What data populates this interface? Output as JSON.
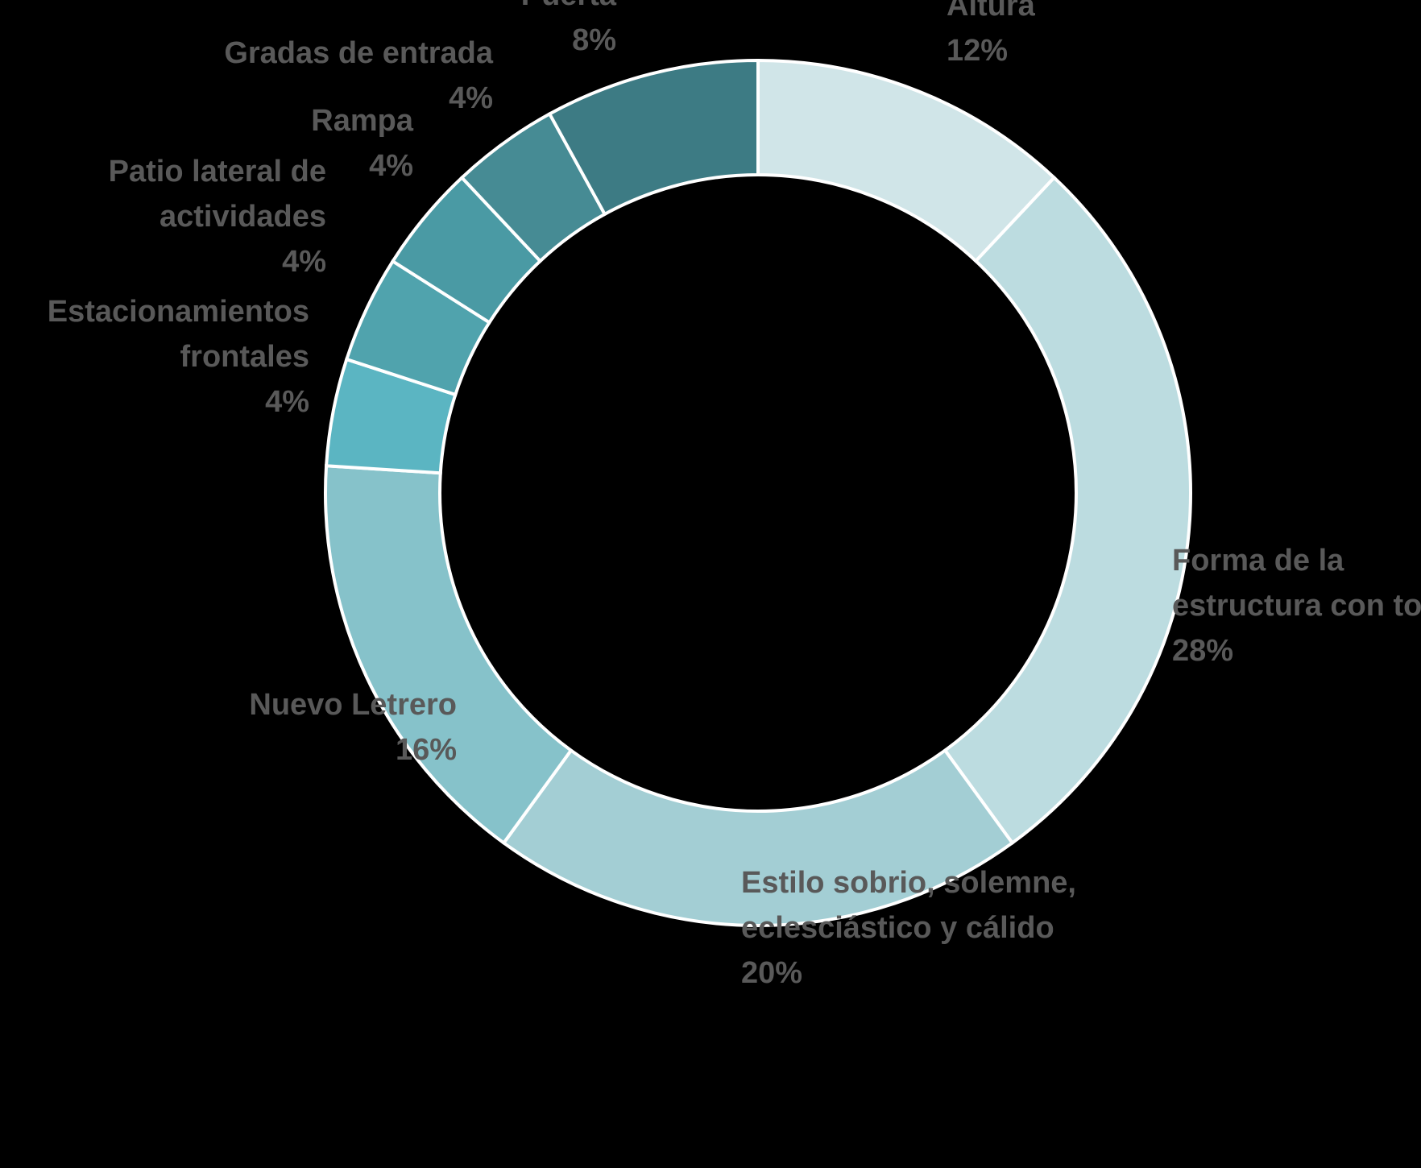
{
  "chart_data": {
    "type": "pie",
    "variant": "donut",
    "slices": [
      {
        "label_lines": [
          "Altura"
        ],
        "pct_label": "12%",
        "value": 12,
        "color": "#d0e5e8"
      },
      {
        "label_lines": [
          "Forma  de la",
          "estructura con to"
        ],
        "pct_label": "28%",
        "value": 28,
        "color": "#bcdce0"
      },
      {
        "label_lines": [
          "Estilo sobrio, solemne,",
          "eclesciástico y cálido"
        ],
        "pct_label": "20%",
        "value": 20,
        "color": "#a3ced4"
      },
      {
        "label_lines": [
          "Nuevo Letrero"
        ],
        "pct_label": "16%",
        "value": 16,
        "color": "#86c2ca"
      },
      {
        "label_lines": [
          "Estacionamientos",
          "frontales"
        ],
        "pct_label": "4%",
        "value": 4,
        "color": "#5bb5c2"
      },
      {
        "label_lines": [
          "Patio lateral de",
          "actividades"
        ],
        "pct_label": "4%",
        "value": 4,
        "color": "#50a3ad"
      },
      {
        "label_lines": [
          "Rampa"
        ],
        "pct_label": "4%",
        "value": 4,
        "color": "#4a9aa4"
      },
      {
        "label_lines": [
          "Gradas de entrada"
        ],
        "pct_label": "4%",
        "value": 4,
        "color": "#468b94"
      },
      {
        "label_lines": [
          "Puerta"
        ],
        "pct_label": "8%",
        "value": 8,
        "color": "#3d7b84"
      }
    ]
  }
}
